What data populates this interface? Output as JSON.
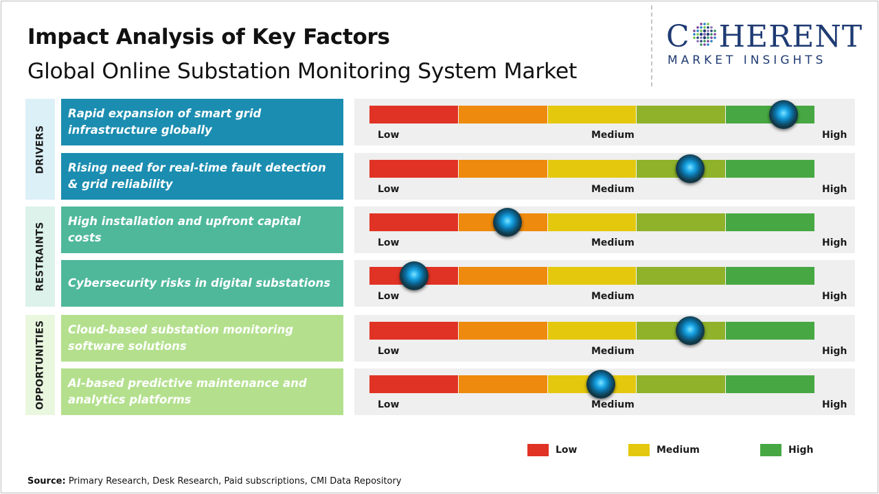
{
  "header": {
    "title": "Impact Analysis of Key Factors",
    "subtitle": "Global Online Substation Monitoring System Market"
  },
  "logo": {
    "brand_pre": "C",
    "brand_post": "HERENT",
    "tagline": "MARKET INSIGHTS",
    "color": "#1f3b73"
  },
  "colors": {
    "scale": [
      "#e03325",
      "#ee8a0d",
      "#e4c80e",
      "#8fb22a",
      "#47a843"
    ],
    "drivers_factor": "#1b8db0",
    "drivers_cat": "#dcf0f8",
    "restraints_factor": "#4fb89b",
    "restraints_cat": "#dcf2ea",
    "opportunities_factor": "#b4e08e",
    "opportunities_cat": "#eaf7df",
    "legend_low": "#e03325",
    "legend_medium": "#e4c80e",
    "legend_high": "#47a843"
  },
  "chart_data": {
    "type": "gauge",
    "scale_labels": {
      "low": "Low",
      "medium": "Medium",
      "high": "High"
    },
    "impact_scale": [
      0,
      1
    ],
    "categories": [
      {
        "name": "DRIVERS",
        "factors": [
          {
            "label": "Rapid expansion of smart grid infrastructure globally",
            "impact": 0.93
          },
          {
            "label": "Rising need for real-time fault detection & grid reliability",
            "impact": 0.72
          }
        ]
      },
      {
        "name": "RESTRAINTS",
        "factors": [
          {
            "label": "High installation and upfront capital costs",
            "impact": 0.31
          },
          {
            "label": "Cybersecurity risks in digital substations",
            "impact": 0.1
          }
        ]
      },
      {
        "name": "OPPORTUNITIES",
        "factors": [
          {
            "label": "Cloud-based substation monitoring software solutions",
            "impact": 0.72
          },
          {
            "label": "AI-based predictive maintenance and analytics platforms",
            "impact": 0.52
          }
        ]
      }
    ],
    "legend": [
      {
        "label": "Low",
        "color": "#e03325"
      },
      {
        "label": "Medium",
        "color": "#e4c80e"
      },
      {
        "label": "High",
        "color": "#47a843"
      }
    ]
  },
  "source": {
    "label": "Source:",
    "text": " Primary Research, Desk Research, Paid subscriptions, CMI Data Repository"
  }
}
